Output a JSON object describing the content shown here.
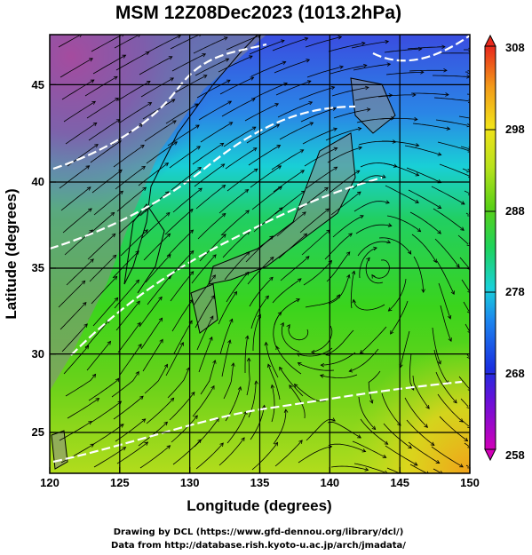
{
  "title": "MSM 12Z08Dec2023 (1013.2hPa)",
  "x_axis": {
    "label": "Longitude (degrees)",
    "ticks": [
      "120",
      "125",
      "130",
      "135",
      "140",
      "145",
      "150"
    ]
  },
  "y_axis": {
    "label": "Latitude  (degrees)",
    "ticks": [
      "25",
      "30",
      "35",
      "40",
      "45"
    ]
  },
  "colorbar": {
    "ticks": [
      "308",
      "298",
      "288",
      "278",
      "268",
      "258"
    ]
  },
  "credits": {
    "line1": "Drawing by DCL (https://www.gfd-dennou.org/library/dcl/)",
    "line2": "Data from http://database.rish.kyoto-u.ac.jp/arch/jmadata/"
  },
  "chart_data": {
    "type": "heatmap",
    "title": "MSM 12Z08Dec2023 (1013.2hPa)",
    "xlabel": "Longitude (degrees)",
    "ylabel": "Latitude  (degrees)",
    "xlim": [
      120,
      150
    ],
    "ylim": [
      22.4,
      47.6
    ],
    "colorbar_range": [
      258,
      308
    ],
    "grid": true,
    "overlays": [
      "wind streamlines",
      "coastlines",
      "white contour lines"
    ],
    "colors": {
      "land": "#8a8a8a",
      "streamline": "#000000",
      "contour": "#ffffff"
    }
  }
}
